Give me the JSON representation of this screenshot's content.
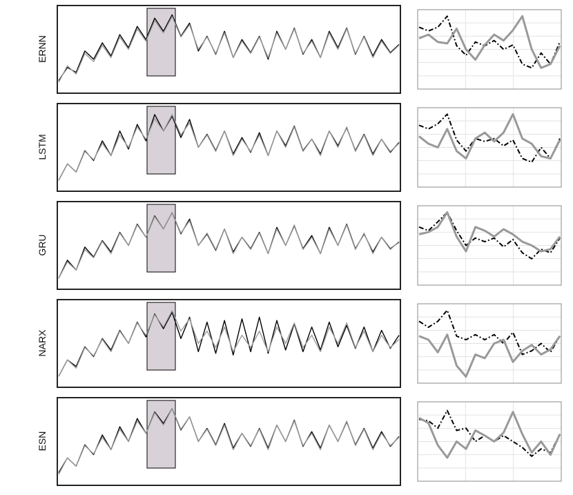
{
  "chart_data": [
    {
      "type": "line",
      "ylabel": "ERNN",
      "ylim": [
        0,
        1
      ],
      "series": [
        {
          "color": "#000000",
          "values": [
            0.12,
            0.28,
            0.22,
            0.48,
            0.38,
            0.58,
            0.42,
            0.68,
            0.52,
            0.78,
            0.62,
            0.88,
            0.72,
            0.92,
            0.66,
            0.82,
            0.48,
            0.66,
            0.44,
            0.72,
            0.4,
            0.62,
            0.46,
            0.66,
            0.38,
            0.72,
            0.5,
            0.76,
            0.44,
            0.62,
            0.4,
            0.72,
            0.52,
            0.76,
            0.44,
            0.66,
            0.42,
            0.62,
            0.46,
            0.56
          ]
        },
        {
          "color": "#999999",
          "values": [
            0.1,
            0.3,
            0.2,
            0.45,
            0.35,
            0.55,
            0.4,
            0.65,
            0.5,
            0.75,
            0.6,
            0.85,
            0.7,
            0.9,
            0.65,
            0.8,
            0.5,
            0.65,
            0.45,
            0.7,
            0.4,
            0.6,
            0.45,
            0.65,
            0.4,
            0.7,
            0.5,
            0.75,
            0.45,
            0.6,
            0.4,
            0.7,
            0.5,
            0.75,
            0.45,
            0.65,
            0.4,
            0.6,
            0.45,
            0.55
          ]
        }
      ]
    },
    {
      "type": "line",
      "ylim": [
        0,
        1
      ],
      "series": [
        {
          "color": "#000000",
          "dash": true,
          "values": [
            0.8,
            0.75,
            0.8,
            0.95,
            0.55,
            0.42,
            0.6,
            0.55,
            0.62,
            0.5,
            0.56,
            0.3,
            0.25,
            0.45,
            0.3,
            0.6
          ]
        },
        {
          "color": "#999999",
          "values": [
            0.65,
            0.7,
            0.6,
            0.58,
            0.78,
            0.5,
            0.36,
            0.56,
            0.7,
            0.62,
            0.76,
            0.95,
            0.5,
            0.25,
            0.3,
            0.55
          ]
        }
      ]
    },
    {
      "type": "line",
      "ylabel": "LSTM",
      "ylim": [
        0,
        1
      ],
      "series": [
        {
          "color": "#000000",
          "values": [
            0.1,
            0.3,
            0.2,
            0.46,
            0.34,
            0.58,
            0.4,
            0.7,
            0.48,
            0.78,
            0.58,
            0.9,
            0.7,
            0.88,
            0.62,
            0.84,
            0.5,
            0.66,
            0.46,
            0.7,
            0.42,
            0.62,
            0.44,
            0.68,
            0.4,
            0.7,
            0.52,
            0.76,
            0.46,
            0.6,
            0.42,
            0.7,
            0.52,
            0.74,
            0.46,
            0.66,
            0.42,
            0.6,
            0.44,
            0.56
          ]
        },
        {
          "color": "#999999",
          "values": [
            0.1,
            0.3,
            0.2,
            0.45,
            0.35,
            0.55,
            0.4,
            0.65,
            0.5,
            0.75,
            0.6,
            0.85,
            0.7,
            0.9,
            0.65,
            0.8,
            0.5,
            0.65,
            0.45,
            0.7,
            0.4,
            0.6,
            0.45,
            0.65,
            0.4,
            0.7,
            0.5,
            0.75,
            0.45,
            0.6,
            0.4,
            0.7,
            0.5,
            0.75,
            0.45,
            0.65,
            0.4,
            0.6,
            0.45,
            0.55
          ]
        }
      ]
    },
    {
      "type": "line",
      "ylim": [
        0,
        1
      ],
      "series": [
        {
          "color": "#000000",
          "dash": true,
          "values": [
            0.8,
            0.75,
            0.82,
            0.95,
            0.6,
            0.45,
            0.62,
            0.58,
            0.62,
            0.52,
            0.6,
            0.35,
            0.3,
            0.5,
            0.35,
            0.62
          ]
        },
        {
          "color": "#999999",
          "values": [
            0.65,
            0.55,
            0.5,
            0.75,
            0.45,
            0.35,
            0.62,
            0.7,
            0.58,
            0.7,
            0.95,
            0.62,
            0.55,
            0.38,
            0.35,
            0.6
          ]
        }
      ]
    },
    {
      "type": "line",
      "ylabel": "GRU",
      "ylim": [
        0,
        1
      ],
      "series": [
        {
          "color": "#000000",
          "values": [
            0.1,
            0.32,
            0.2,
            0.48,
            0.36,
            0.56,
            0.42,
            0.66,
            0.5,
            0.76,
            0.6,
            0.86,
            0.7,
            0.9,
            0.64,
            0.82,
            0.5,
            0.64,
            0.44,
            0.7,
            0.42,
            0.6,
            0.46,
            0.66,
            0.4,
            0.72,
            0.5,
            0.74,
            0.46,
            0.62,
            0.4,
            0.72,
            0.5,
            0.76,
            0.46,
            0.64,
            0.42,
            0.6,
            0.46,
            0.54
          ]
        },
        {
          "color": "#999999",
          "values": [
            0.1,
            0.3,
            0.2,
            0.45,
            0.35,
            0.55,
            0.4,
            0.65,
            0.5,
            0.75,
            0.6,
            0.85,
            0.7,
            0.9,
            0.65,
            0.8,
            0.5,
            0.65,
            0.45,
            0.7,
            0.4,
            0.6,
            0.45,
            0.65,
            0.4,
            0.7,
            0.5,
            0.75,
            0.45,
            0.6,
            0.4,
            0.7,
            0.5,
            0.75,
            0.45,
            0.65,
            0.4,
            0.6,
            0.45,
            0.55
          ]
        }
      ]
    },
    {
      "type": "line",
      "ylim": [
        0,
        1
      ],
      "series": [
        {
          "color": "#000000",
          "dash": true,
          "values": [
            0.75,
            0.7,
            0.82,
            0.95,
            0.7,
            0.5,
            0.6,
            0.55,
            0.6,
            0.48,
            0.58,
            0.4,
            0.32,
            0.45,
            0.4,
            0.6
          ]
        },
        {
          "color": "#999999",
          "values": [
            0.65,
            0.68,
            0.75,
            0.95,
            0.62,
            0.42,
            0.75,
            0.7,
            0.62,
            0.72,
            0.65,
            0.55,
            0.5,
            0.42,
            0.45,
            0.62
          ]
        }
      ]
    },
    {
      "type": "line",
      "ylabel": "NARX",
      "ylim": [
        0,
        1
      ],
      "series": [
        {
          "color": "#000000",
          "values": [
            0.1,
            0.3,
            0.22,
            0.46,
            0.34,
            0.56,
            0.42,
            0.66,
            0.5,
            0.76,
            0.58,
            0.86,
            0.68,
            0.88,
            0.56,
            0.82,
            0.4,
            0.76,
            0.38,
            0.78,
            0.36,
            0.8,
            0.4,
            0.82,
            0.38,
            0.78,
            0.42,
            0.74,
            0.4,
            0.7,
            0.42,
            0.76,
            0.46,
            0.72,
            0.44,
            0.7,
            0.4,
            0.66,
            0.44,
            0.6
          ]
        },
        {
          "color": "#999999",
          "values": [
            0.1,
            0.3,
            0.2,
            0.45,
            0.35,
            0.55,
            0.4,
            0.65,
            0.5,
            0.75,
            0.6,
            0.85,
            0.7,
            0.9,
            0.65,
            0.8,
            0.5,
            0.65,
            0.45,
            0.7,
            0.4,
            0.6,
            0.45,
            0.65,
            0.4,
            0.7,
            0.5,
            0.75,
            0.45,
            0.6,
            0.4,
            0.7,
            0.5,
            0.75,
            0.45,
            0.65,
            0.4,
            0.6,
            0.45,
            0.55
          ]
        }
      ]
    },
    {
      "type": "line",
      "ylim": [
        0,
        1
      ],
      "series": [
        {
          "color": "#000000",
          "dash": true,
          "values": [
            0.8,
            0.72,
            0.8,
            0.95,
            0.6,
            0.55,
            0.62,
            0.55,
            0.62,
            0.5,
            0.65,
            0.35,
            0.4,
            0.5,
            0.38,
            0.6
          ]
        },
        {
          "color": "#999999",
          "values": [
            0.6,
            0.55,
            0.38,
            0.62,
            0.2,
            0.05,
            0.35,
            0.3,
            0.5,
            0.55,
            0.25,
            0.4,
            0.48,
            0.35,
            0.42,
            0.6
          ]
        }
      ]
    },
    {
      "type": "line",
      "ylabel": "ESN",
      "ylim": [
        0,
        1
      ],
      "series": [
        {
          "color": "#000000",
          "values": [
            0.12,
            0.3,
            0.2,
            0.46,
            0.34,
            0.58,
            0.4,
            0.68,
            0.5,
            0.78,
            0.6,
            0.86,
            0.72,
            0.9,
            0.64,
            0.8,
            0.5,
            0.66,
            0.46,
            0.72,
            0.42,
            0.6,
            0.44,
            0.66,
            0.42,
            0.7,
            0.5,
            0.76,
            0.44,
            0.62,
            0.42,
            0.7,
            0.5,
            0.74,
            0.46,
            0.66,
            0.42,
            0.62,
            0.44,
            0.56
          ]
        },
        {
          "color": "#999999",
          "values": [
            0.1,
            0.3,
            0.2,
            0.45,
            0.35,
            0.55,
            0.4,
            0.65,
            0.5,
            0.75,
            0.6,
            0.85,
            0.7,
            0.9,
            0.65,
            0.8,
            0.5,
            0.65,
            0.45,
            0.7,
            0.4,
            0.6,
            0.45,
            0.65,
            0.4,
            0.7,
            0.5,
            0.75,
            0.45,
            0.6,
            0.4,
            0.7,
            0.5,
            0.75,
            0.45,
            0.65,
            0.4,
            0.6,
            0.45,
            0.55
          ]
        }
      ]
    },
    {
      "type": "line",
      "ylim": [
        0,
        1
      ],
      "series": [
        {
          "color": "#000000",
          "dash": true,
          "values": [
            0.8,
            0.78,
            0.68,
            0.92,
            0.65,
            0.68,
            0.5,
            0.58,
            0.5,
            0.58,
            0.5,
            0.42,
            0.3,
            0.4,
            0.35,
            0.6
          ]
        },
        {
          "color": "#999999",
          "values": [
            0.82,
            0.75,
            0.45,
            0.28,
            0.5,
            0.4,
            0.65,
            0.58,
            0.5,
            0.62,
            0.9,
            0.6,
            0.35,
            0.5,
            0.32,
            0.6
          ]
        }
      ]
    }
  ]
}
